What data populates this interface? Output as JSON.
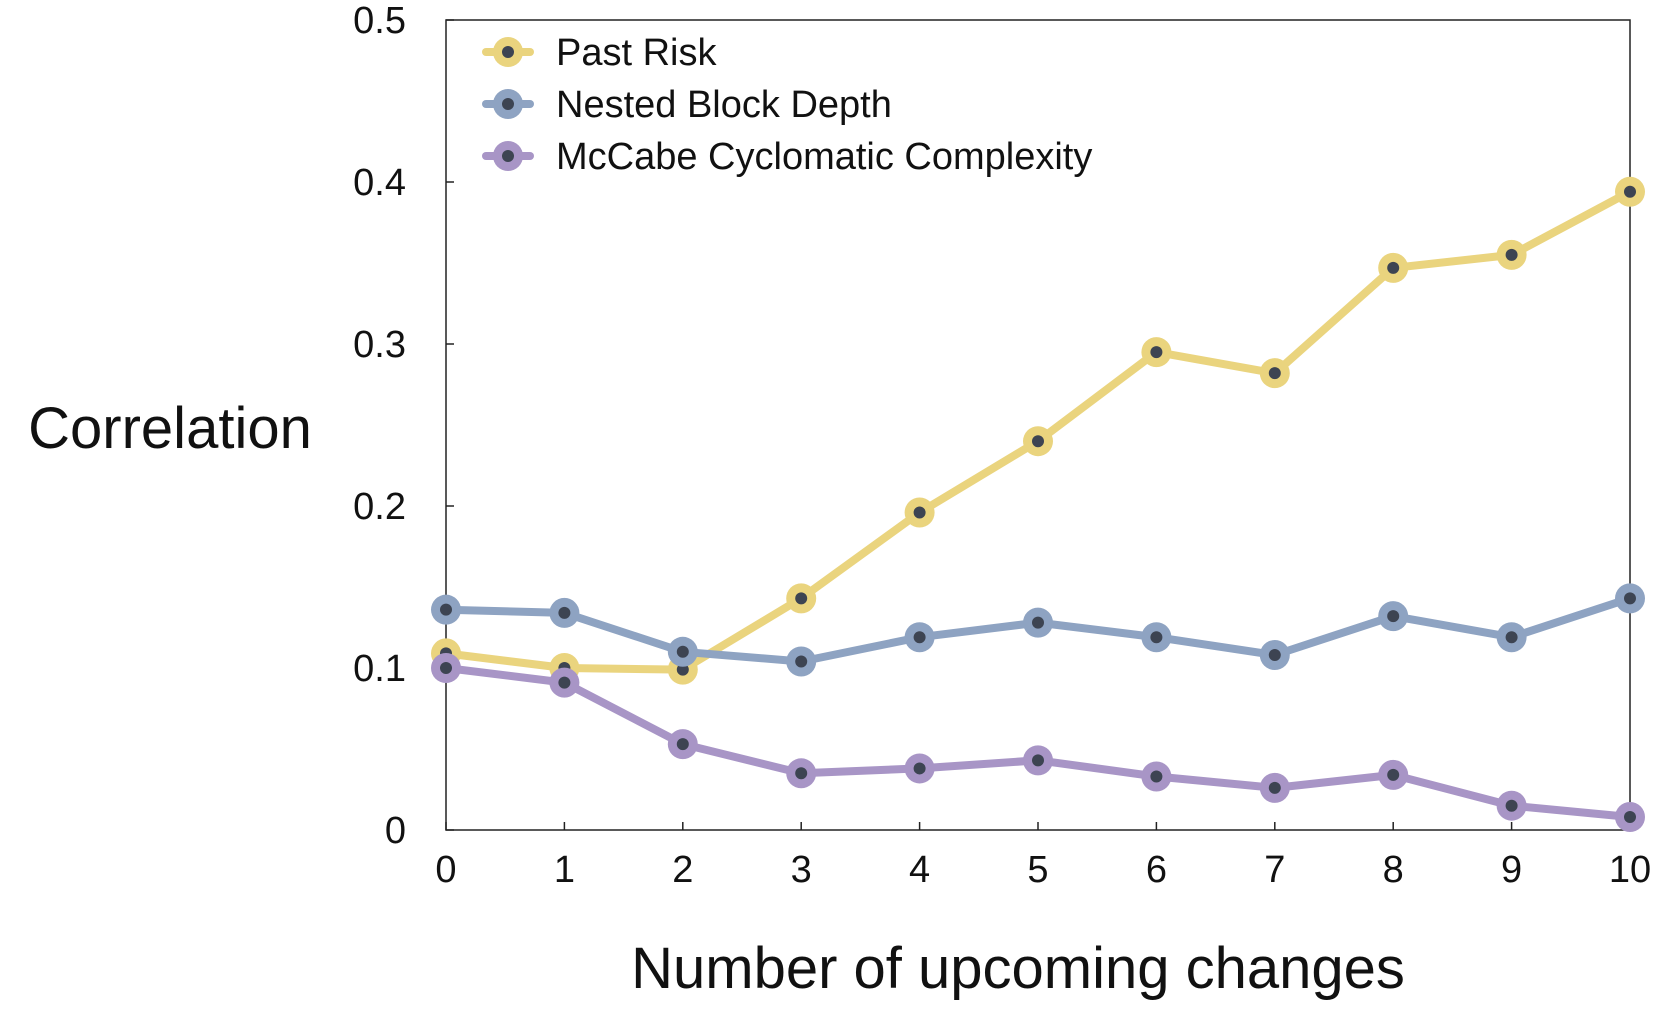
{
  "chart_data": {
    "type": "line",
    "title": "",
    "xlabel": "Number of upcoming changes",
    "ylabel": "Correlation",
    "x": [
      0,
      1,
      2,
      3,
      4,
      5,
      6,
      7,
      8,
      9,
      10
    ],
    "xticks": [
      "0",
      "1",
      "2",
      "3",
      "4",
      "5",
      "6",
      "7",
      "8",
      "9",
      "10"
    ],
    "yticks": [
      "0",
      "0.1",
      "0.2",
      "0.3",
      "0.4",
      "0.5"
    ],
    "xlim": [
      0,
      10
    ],
    "ylim": [
      0,
      0.5
    ],
    "grid": false,
    "legend_position": "top-left",
    "series": [
      {
        "name": "Past Risk",
        "color": "#EAD47E",
        "marker_color": "#3D4452",
        "values": [
          0.109,
          0.1,
          0.099,
          0.143,
          0.196,
          0.24,
          0.295,
          0.282,
          0.347,
          0.355,
          0.394
        ]
      },
      {
        "name": "Nested Block Depth",
        "color": "#8EA3C2",
        "marker_color": "#3D4452",
        "values": [
          0.136,
          0.134,
          0.11,
          0.104,
          0.119,
          0.128,
          0.119,
          0.108,
          0.132,
          0.119,
          0.143
        ]
      },
      {
        "name": "McCabe Cyclomatic Complexity",
        "color": "#A895C6",
        "marker_color": "#3D4452",
        "values": [
          0.1,
          0.091,
          0.053,
          0.035,
          0.038,
          0.043,
          0.033,
          0.026,
          0.034,
          0.015,
          0.008
        ]
      }
    ]
  }
}
